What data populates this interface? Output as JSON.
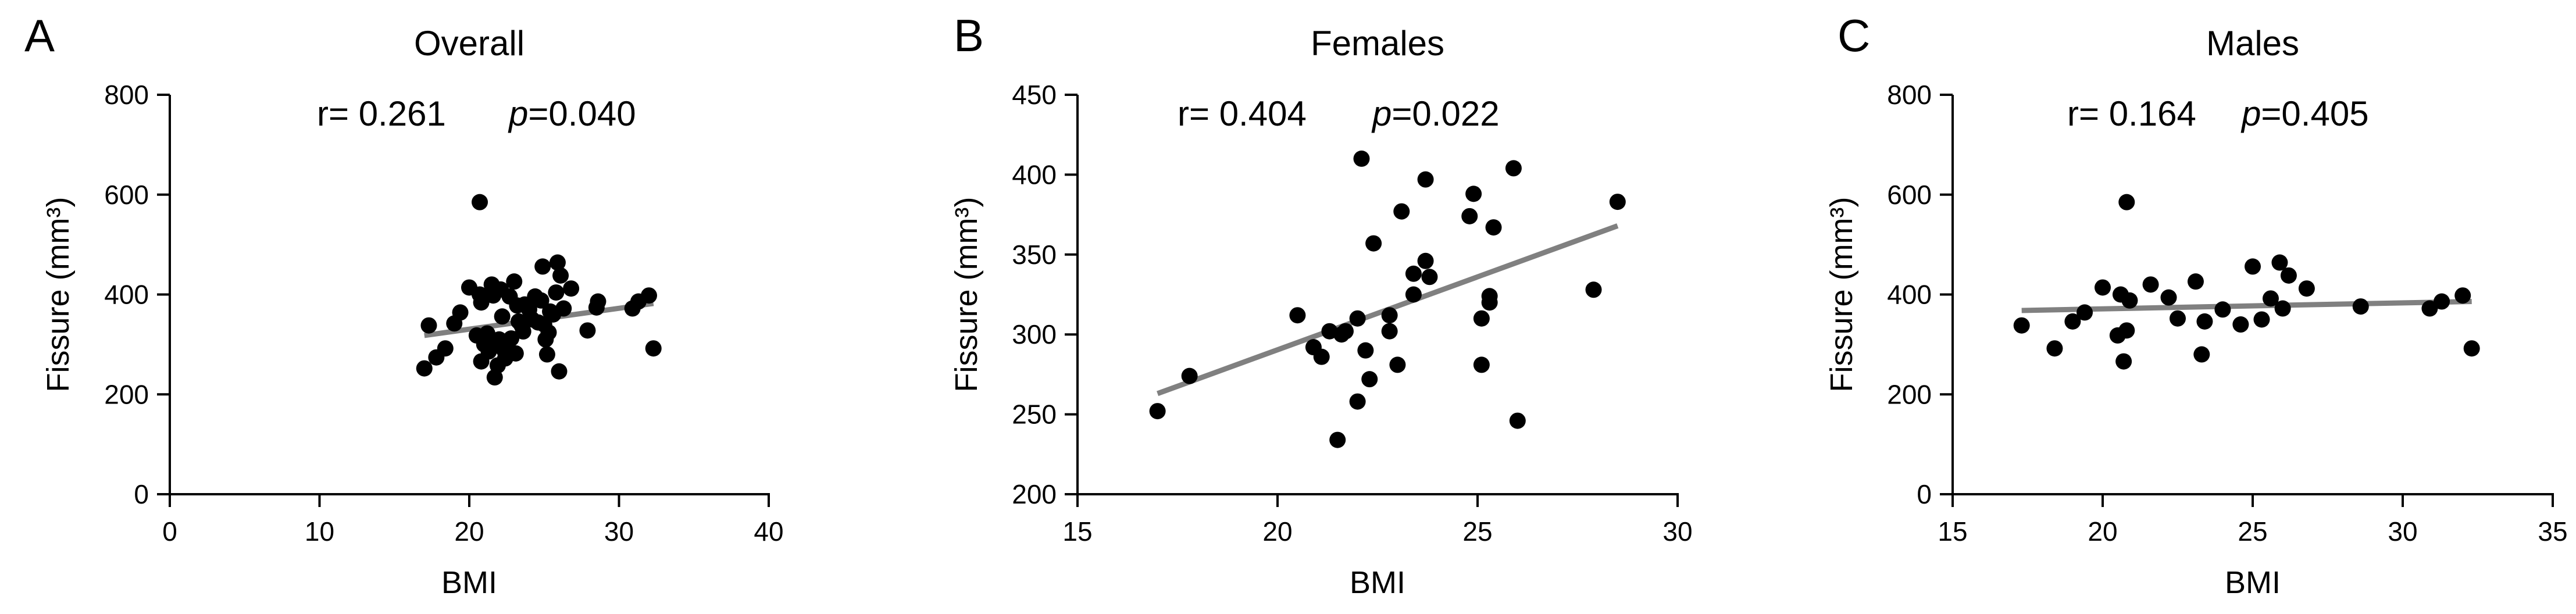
{
  "chart_data": [
    {
      "type": "scatter",
      "panel_label": "A",
      "title": "Overall",
      "stat_r": "r= 0.261",
      "stat_p_italic": "p",
      "stat_p_value": "=0.040",
      "xlabel": "BMI",
      "ylabel": "Fissure (mm³)",
      "xlim": [
        0,
        40
      ],
      "ylim": [
        0,
        800
      ],
      "xticks": [
        0,
        10,
        20,
        30,
        40
      ],
      "yticks": [
        0,
        200,
        400,
        600,
        800
      ],
      "fit_line": [
        [
          17,
          318
        ],
        [
          32.3,
          382
        ]
      ],
      "points": [
        [
          17,
          252
        ],
        [
          17.3,
          338
        ],
        [
          17.8,
          274
        ],
        [
          18.4,
          292
        ],
        [
          19.0,
          342
        ],
        [
          19.4,
          364
        ],
        [
          20.0,
          414
        ],
        [
          20.5,
          318
        ],
        [
          20.7,
          400
        ],
        [
          20.8,
          384
        ],
        [
          20.7,
          585
        ],
        [
          20.8,
          266
        ],
        [
          21.0,
          300
        ],
        [
          21.2,
          322
        ],
        [
          21.3,
          286
        ],
        [
          21.5,
          420
        ],
        [
          21.6,
          398
        ],
        [
          21.7,
          234
        ],
        [
          21.8,
          300
        ],
        [
          21.9,
          258
        ],
        [
          22.0,
          310
        ],
        [
          22.1,
          410
        ],
        [
          22.2,
          356
        ],
        [
          22.3,
          290
        ],
        [
          22.4,
          272
        ],
        [
          22.5,
          296
        ],
        [
          22.7,
          396
        ],
        [
          22.8,
          312
        ],
        [
          23.0,
          426
        ],
        [
          23.1,
          282
        ],
        [
          23.2,
          378
        ],
        [
          23.3,
          346
        ],
        [
          23.5,
          338
        ],
        [
          23.6,
          326
        ],
        [
          23.7,
          380
        ],
        [
          24.0,
          370
        ],
        [
          24.2,
          350
        ],
        [
          24.4,
          396
        ],
        [
          24.6,
          344
        ],
        [
          24.8,
          388
        ],
        [
          24.9,
          456
        ],
        [
          25.0,
          340
        ],
        [
          25.1,
          310
        ],
        [
          25.2,
          280
        ],
        [
          25.3,
          324
        ],
        [
          25.4,
          366
        ],
        [
          25.6,
          360
        ],
        [
          25.8,
          404
        ],
        [
          25.9,
          464
        ],
        [
          26.0,
          246
        ],
        [
          26.1,
          438
        ],
        [
          26.3,
          372
        ],
        [
          26.8,
          412
        ],
        [
          27.9,
          328
        ],
        [
          28.5,
          374
        ],
        [
          28.6,
          386
        ],
        [
          30.9,
          372
        ],
        [
          31.3,
          386
        ],
        [
          32.0,
          398
        ],
        [
          32.3,
          292
        ]
      ]
    },
    {
      "type": "scatter",
      "panel_label": "B",
      "title": "Females",
      "stat_r": "r= 0.404",
      "stat_p_italic": "p",
      "stat_p_value": "=0.022",
      "xlabel": "BMI",
      "ylabel": "Fissure (mm³)",
      "xlim": [
        15,
        30
      ],
      "ylim": [
        200,
        450
      ],
      "xticks": [
        15,
        20,
        25,
        30
      ],
      "yticks": [
        200,
        250,
        300,
        350,
        400,
        450
      ],
      "fit_line": [
        [
          17,
          263
        ],
        [
          28.5,
          368
        ]
      ],
      "points": [
        [
          17,
          252
        ],
        [
          17.8,
          274
        ],
        [
          20.5,
          312
        ],
        [
          20.9,
          292
        ],
        [
          21.1,
          286
        ],
        [
          21.3,
          302
        ],
        [
          21.5,
          234
        ],
        [
          21.6,
          300
        ],
        [
          21.7,
          302
        ],
        [
          22.0,
          310
        ],
        [
          22.0,
          258
        ],
        [
          22.1,
          410
        ],
        [
          22.2,
          290
        ],
        [
          22.3,
          272
        ],
        [
          22.4,
          357
        ],
        [
          22.8,
          312
        ],
        [
          22.8,
          302
        ],
        [
          23.0,
          281
        ],
        [
          23.1,
          377
        ],
        [
          23.4,
          338
        ],
        [
          23.4,
          325
        ],
        [
          23.7,
          346
        ],
        [
          23.7,
          397
        ],
        [
          23.8,
          336
        ],
        [
          24.8,
          374
        ],
        [
          24.9,
          388
        ],
        [
          25.1,
          310
        ],
        [
          25.1,
          281
        ],
        [
          25.3,
          324
        ],
        [
          25.3,
          320
        ],
        [
          25.4,
          367
        ],
        [
          25.9,
          404
        ],
        [
          26.0,
          246
        ],
        [
          27.9,
          328
        ],
        [
          28.5,
          383
        ]
      ]
    },
    {
      "type": "scatter",
      "panel_label": "C",
      "title": "Males",
      "stat_r": "r= 0.164",
      "stat_p_italic": "p",
      "stat_p_value": "=0.405",
      "xlabel": "BMI",
      "ylabel": "Fissure (mm³)",
      "xlim": [
        15,
        35
      ],
      "ylim": [
        0,
        800
      ],
      "xticks": [
        15,
        20,
        25,
        30,
        35
      ],
      "yticks": [
        0,
        200,
        400,
        600,
        800
      ],
      "fit_line": [
        [
          17.3,
          368
        ],
        [
          32.3,
          386
        ]
      ],
      "points": [
        [
          17.3,
          338
        ],
        [
          18.4,
          292
        ],
        [
          19.0,
          346
        ],
        [
          19.4,
          364
        ],
        [
          20.0,
          414
        ],
        [
          20.5,
          318
        ],
        [
          20.6,
          400
        ],
        [
          20.7,
          266
        ],
        [
          20.8,
          585
        ],
        [
          20.8,
          328
        ],
        [
          20.9,
          388
        ],
        [
          21.6,
          420
        ],
        [
          22.2,
          394
        ],
        [
          22.5,
          352
        ],
        [
          23.1,
          426
        ],
        [
          23.3,
          280
        ],
        [
          23.4,
          346
        ],
        [
          24.0,
          370
        ],
        [
          24.6,
          340
        ],
        [
          25.0,
          456
        ],
        [
          25.3,
          350
        ],
        [
          25.6,
          392
        ],
        [
          25.9,
          464
        ],
        [
          26.0,
          372
        ],
        [
          26.2,
          438
        ],
        [
          26.8,
          412
        ],
        [
          28.6,
          376
        ],
        [
          30.9,
          372
        ],
        [
          31.3,
          386
        ],
        [
          32.0,
          398
        ],
        [
          32.3,
          292
        ]
      ]
    }
  ]
}
